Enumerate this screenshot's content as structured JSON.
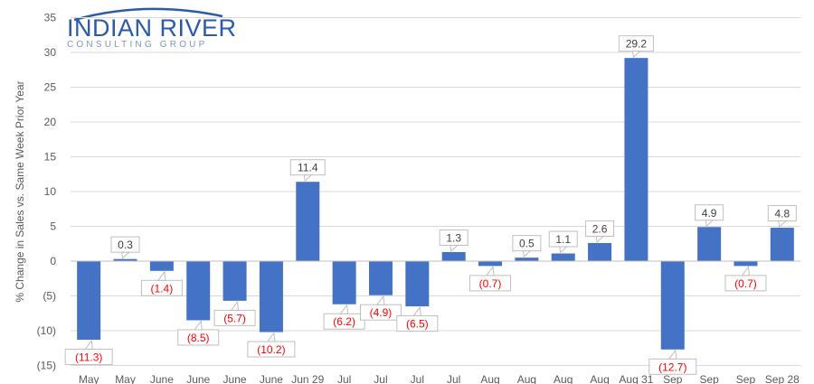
{
  "logo": {
    "name": "INDIAN RIVER",
    "subtitle": "CONSULTING GROUP"
  },
  "chart_data": {
    "type": "bar",
    "title": "",
    "ylabel": "% Change in Sales vs. Same Week Prior Year",
    "xlabel": "",
    "ylim": [
      -15,
      35
    ],
    "yticks": [
      "35",
      "30",
      "25",
      "20",
      "15",
      "10",
      "5",
      "0",
      "(5)",
      "(10)",
      "(15)"
    ],
    "ytick_values": [
      35,
      30,
      25,
      20,
      15,
      10,
      5,
      0,
      -5,
      -10,
      -15
    ],
    "grid": true,
    "categories": [
      "May",
      "May",
      "June",
      "June",
      "June",
      "June",
      "Jun 29",
      "Jul",
      "Jul",
      "Jul",
      "Jul",
      "Aug",
      "Aug",
      "Aug",
      "Aug",
      "Aug 31",
      "Sep",
      "Sep",
      "Sep",
      "Sep 28"
    ],
    "values": [
      -11.3,
      0.3,
      -1.4,
      -8.5,
      -5.7,
      -10.2,
      11.4,
      -6.2,
      -4.9,
      -6.5,
      1.3,
      -0.7,
      0.5,
      1.1,
      2.6,
      29.2,
      -12.7,
      4.9,
      -0.7,
      4.8
    ],
    "data_labels": [
      "(11.3)",
      "0.3",
      "(1.4)",
      "(8.5)",
      "(5.7)",
      "(10.2)",
      "11.4",
      "(6.2)",
      "(4.9)",
      "(6.5)",
      "1.3",
      "(0.7)",
      "0.5",
      "1.1",
      "2.6",
      "29.2",
      "(12.7)",
      "4.9",
      "(0.7)",
      "4.8"
    ],
    "colors": {
      "bar": "#4472c4",
      "positive_label": "#404040",
      "negative_label": "#ff0000",
      "grid": "#d9d9d9",
      "tick": "#595959"
    }
  }
}
